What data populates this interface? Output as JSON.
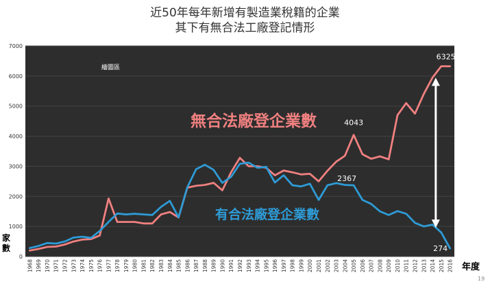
{
  "title_line1": "近50年每年新增有製造業稅籍的企業",
  "title_line2": "其下有無合法工廠登記情形",
  "y_unit_label": "家數",
  "x_unit_label": "年度",
  "page_number": "19",
  "plot_area_tag": "繪圖區",
  "colors": {
    "background": "#2d2d2d",
    "without_factory": "#f08080",
    "with_factory": "#2e9bd6",
    "grid": "#444444",
    "arrow": "#ffffff"
  },
  "chart_data": {
    "type": "line",
    "title": "近50年每年新增有製造業稅籍的企業 其下有無合法工廠登記情形",
    "xlabel": "年度",
    "ylabel": "家數",
    "ylim": [
      0,
      7000
    ],
    "yticks": [
      0,
      1000,
      2000,
      3000,
      4000,
      5000,
      6000,
      7000
    ],
    "grid": true,
    "x": [
      "1968",
      "1969",
      "1970",
      "1971",
      "1972",
      "1973",
      "1974",
      "1975",
      "1976",
      "1977",
      "1978",
      "1979",
      "1980",
      "1981",
      "1982",
      "1983",
      "1984",
      "1985",
      "1986",
      "1987",
      "1988",
      "1989",
      "1990",
      "1991",
      "1992",
      "1993",
      "1994",
      "1995",
      "1996",
      "1997",
      "1998",
      "1999",
      "2000",
      "2001",
      "2002",
      "2003",
      "2004",
      "2005",
      "2006",
      "2007",
      "2008",
      "2009",
      "2010",
      "2011",
      "2012",
      "2013",
      "2014",
      "2015",
      "2016"
    ],
    "series": [
      {
        "name": "無合法廠登企業數",
        "color": "#f08080",
        "values": [
          200,
          250,
          320,
          330,
          400,
          500,
          560,
          580,
          700,
          1930,
          1150,
          1150,
          1150,
          1100,
          1100,
          1400,
          1480,
          1300,
          2290,
          2350,
          2380,
          2450,
          2200,
          2800,
          3280,
          3000,
          3000,
          2950,
          2700,
          2860,
          2800,
          2730,
          2750,
          2500,
          2850,
          3150,
          3350,
          4043,
          3400,
          3250,
          3330,
          3230,
          4700,
          5100,
          4750,
          5400,
          5950,
          6325,
          6325
        ],
        "labels": [
          {
            "x": "2005",
            "text": "4043"
          },
          {
            "x": "2016",
            "text": "6325"
          }
        ]
      },
      {
        "name": "有合法廠登企業數",
        "color": "#2e9bd6",
        "values": [
          280,
          350,
          450,
          430,
          500,
          630,
          660,
          620,
          850,
          1150,
          1430,
          1400,
          1420,
          1400,
          1380,
          1650,
          1850,
          1300,
          2300,
          2900,
          3050,
          2880,
          2450,
          2650,
          3080,
          3120,
          2950,
          2980,
          2460,
          2700,
          2370,
          2330,
          2420,
          1880,
          2370,
          2440,
          2380,
          2367,
          1880,
          1750,
          1500,
          1380,
          1510,
          1420,
          1120,
          1000,
          1060,
          800,
          274
        ],
        "labels": [
          {
            "x": "2005",
            "text": "2367"
          },
          {
            "x": "2016",
            "text": "274"
          }
        ]
      }
    ],
    "annotations": [
      {
        "type": "double-arrow",
        "x": "2015",
        "from": 5900,
        "to": 1000
      }
    ]
  }
}
